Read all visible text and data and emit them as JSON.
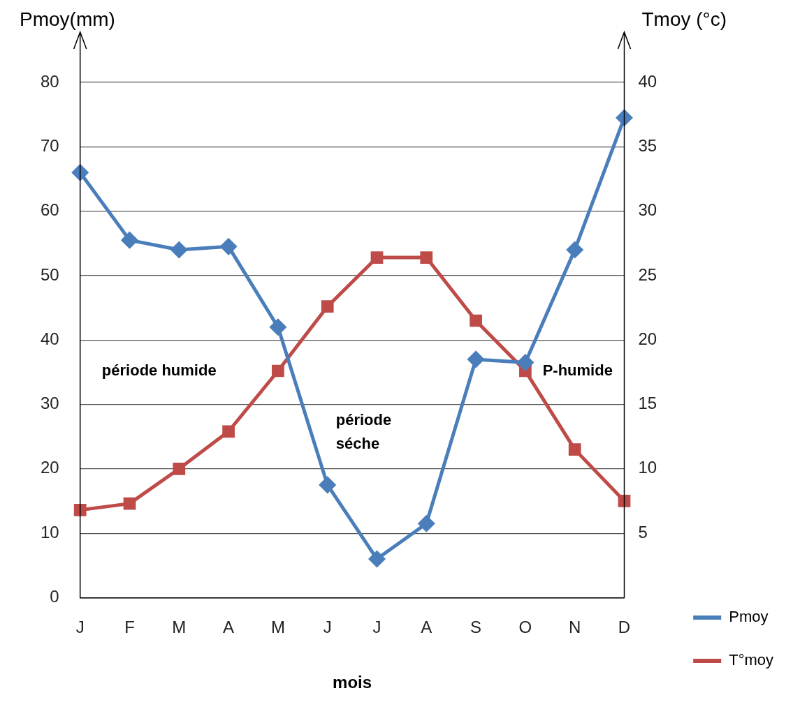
{
  "chart_data": {
    "type": "line",
    "xlabel": "mois",
    "ylabel": "Pmoy(mm)",
    "y2label": "Tmoy (°c)",
    "categories": [
      "J",
      "F",
      "M",
      "A",
      "M",
      "J",
      "J",
      "A",
      "S",
      "O",
      "N",
      "D"
    ],
    "series": [
      {
        "name": "Pmoy",
        "color": "#4a7ebb",
        "marker": "diamond",
        "values": [
          66,
          55.5,
          54,
          54.5,
          42,
          17.5,
          6,
          11.5,
          37,
          36.5,
          54,
          74.5
        ]
      },
      {
        "name": "T°moy",
        "color": "#be4b48",
        "marker": "square",
        "axis": "y2",
        "values": [
          6.8,
          7.3,
          10,
          12.9,
          17.6,
          22.6,
          26.4,
          26.4,
          21.5,
          17.6,
          11.5,
          7.5
        ]
      }
    ],
    "ylim": [
      0,
      80
    ],
    "yticks": [
      0,
      10,
      20,
      30,
      40,
      50,
      60,
      70,
      80
    ],
    "y2lim": [
      0,
      40
    ],
    "y2ticks": [
      {
        "value": 0,
        "label": null
      },
      5,
      10,
      15,
      20,
      25,
      30,
      35,
      40
    ],
    "grid": "y",
    "legend": "bottom right",
    "line_style": "solid",
    "annotations": [
      "période humide",
      "période séche",
      "P-humide"
    ]
  }
}
